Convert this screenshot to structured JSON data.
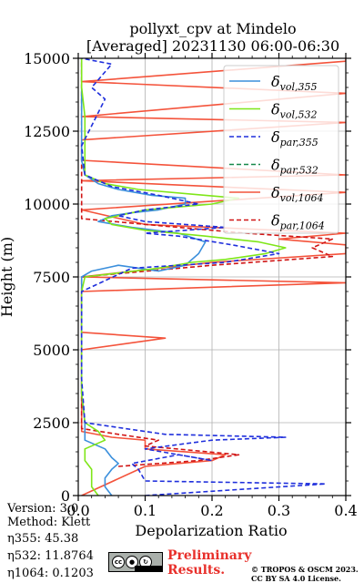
{
  "chart_data": {
    "type": "line",
    "title_line1": "pollyxt_cpv at Mindelo",
    "title_line2": "[Averaged] 20231130 06:00-06:30",
    "xlabel": "Depolarization Ratio",
    "ylabel": "Height (m)",
    "xlim": [
      0.0,
      0.4
    ],
    "ylim": [
      0,
      15000
    ],
    "x_ticks": [
      "0.0",
      "0.1",
      "0.2",
      "0.3",
      "0.4"
    ],
    "y_ticks": [
      "0",
      "2500",
      "5000",
      "7500",
      "10000",
      "12500",
      "15000"
    ],
    "grid": true,
    "legend_position": "top-right",
    "series": [
      {
        "name": "δvol,355",
        "legend_symbol": "δ",
        "legend_sub": "vol,355",
        "color": "#3b8fdc",
        "dash": "solid",
        "points": [
          [
            0.05,
            0
          ],
          [
            0.04,
            300
          ],
          [
            0.04,
            600
          ],
          [
            0.05,
            900
          ],
          [
            0.06,
            1100
          ],
          [
            0.05,
            1300
          ],
          [
            0.04,
            1600
          ],
          [
            0.01,
            1900
          ],
          [
            0.01,
            2500
          ],
          [
            0.005,
            3500
          ],
          [
            0.005,
            5000
          ],
          [
            0.005,
            6500
          ],
          [
            0.005,
            7300
          ],
          [
            0.005,
            7500
          ],
          [
            0.02,
            7700
          ],
          [
            0.06,
            7900
          ],
          [
            0.12,
            7700
          ],
          [
            0.16,
            7900
          ],
          [
            0.18,
            8300
          ],
          [
            0.19,
            8700
          ],
          [
            0.15,
            9000
          ],
          [
            0.08,
            9200
          ],
          [
            0.03,
            9400
          ],
          [
            0.05,
            9600
          ],
          [
            0.08,
            9700
          ],
          [
            0.12,
            9800
          ],
          [
            0.16,
            10000
          ],
          [
            0.16,
            10200
          ],
          [
            0.11,
            10300
          ],
          [
            0.06,
            10500
          ],
          [
            0.03,
            10700
          ],
          [
            0.01,
            11000
          ],
          [
            0.005,
            11500
          ],
          [
            0.005,
            12500
          ],
          [
            0.005,
            13500
          ],
          [
            0.005,
            14500
          ],
          [
            0.005,
            15000
          ]
        ]
      },
      {
        "name": "δvol,532",
        "legend_symbol": "δ",
        "legend_sub": "vol,532",
        "color": "#7fe619",
        "dash": "solid",
        "points": [
          [
            0.03,
            0
          ],
          [
            0.02,
            300
          ],
          [
            0.02,
            600
          ],
          [
            0.02,
            900
          ],
          [
            0.01,
            1200
          ],
          [
            0.01,
            1600
          ],
          [
            0.04,
            1900
          ],
          [
            0.03,
            2200
          ],
          [
            0.01,
            2500
          ],
          [
            0.005,
            3500
          ],
          [
            0.005,
            5000
          ],
          [
            0.005,
            7000
          ],
          [
            0.01,
            7500
          ],
          [
            0.12,
            7800
          ],
          [
            0.17,
            8000
          ],
          [
            0.22,
            8100
          ],
          [
            0.28,
            8300
          ],
          [
            0.31,
            8500
          ],
          [
            0.27,
            8700
          ],
          [
            0.19,
            8900
          ],
          [
            0.1,
            9100
          ],
          [
            0.05,
            9300
          ],
          [
            0.04,
            9500
          ],
          [
            0.1,
            9800
          ],
          [
            0.2,
            10000
          ],
          [
            0.24,
            10200
          ],
          [
            0.19,
            10300
          ],
          [
            0.09,
            10500
          ],
          [
            0.04,
            10700
          ],
          [
            0.01,
            11000
          ],
          [
            0.01,
            12000
          ],
          [
            0.01,
            13000
          ],
          [
            0.005,
            14000
          ],
          [
            0.005,
            15000
          ]
        ]
      },
      {
        "name": "δpar,355",
        "legend_symbol": "δ",
        "legend_sub": "par,355",
        "color": "#1f2fdc",
        "dash": "dashed",
        "points": [
          [
            0.1,
            0
          ],
          [
            0.37,
            400
          ],
          [
            0.1,
            500
          ],
          [
            0.09,
            900
          ],
          [
            0.08,
            1100
          ],
          [
            0.15,
            1400
          ],
          [
            0.2,
            1200
          ],
          [
            0.1,
            1600
          ],
          [
            0.2,
            1900
          ],
          [
            0.31,
            2000
          ],
          [
            0.13,
            2100
          ],
          [
            0.07,
            2300
          ],
          [
            0.01,
            2500
          ],
          [
            0.005,
            4000
          ],
          [
            0.005,
            7000
          ],
          [
            0.08,
            7800
          ],
          [
            0.22,
            8000
          ],
          [
            0.3,
            8300
          ],
          [
            0.23,
            8600
          ],
          [
            0.15,
            8900
          ],
          [
            0.1,
            9000
          ],
          [
            0.22,
            9200
          ],
          [
            0.1,
            9400
          ],
          [
            0.06,
            9600
          ],
          [
            0.1,
            9800
          ],
          [
            0.18,
            10000
          ],
          [
            0.12,
            10300
          ],
          [
            0.05,
            10600
          ],
          [
            0.01,
            11000
          ],
          [
            0.005,
            12000
          ],
          [
            0.04,
            13600
          ],
          [
            0.02,
            14000
          ],
          [
            0.05,
            14800
          ],
          [
            0.005,
            15000
          ]
        ]
      },
      {
        "name": "δpar,532",
        "legend_symbol": "δ",
        "legend_sub": "par,532",
        "color": "#16884a",
        "dash": "dashed",
        "points": []
      },
      {
        "name": "δvol,1064",
        "legend_symbol": "δ",
        "legend_sub": "vol,1064",
        "color": "#f4533b",
        "dash": "solid",
        "points": [
          [
            0.005,
            0
          ],
          [
            0.1,
            1000
          ],
          [
            0.2,
            1200
          ],
          [
            0.22,
            1400
          ],
          [
            0.1,
            1600
          ],
          [
            0.1,
            1900
          ],
          [
            0.05,
            2000
          ],
          [
            0.005,
            2200
          ],
          [
            0.005,
            2600
          ],
          [
            0.005,
            3500
          ],
          [
            0.005,
            5000
          ],
          [
            0.13,
            5400
          ],
          [
            0.005,
            5600
          ],
          [
            0.005,
            6500
          ],
          [
            0.005,
            7000
          ],
          [
            0.4,
            7300
          ],
          [
            0.005,
            7500
          ],
          [
            0.2,
            8000
          ],
          [
            0.4,
            8300
          ],
          [
            0.4,
            8600
          ],
          [
            0.3,
            8800
          ],
          [
            0.4,
            9000
          ],
          [
            0.1,
            9300
          ],
          [
            0.005,
            9800
          ],
          [
            0.4,
            10400
          ],
          [
            0.005,
            10800
          ],
          [
            0.4,
            11000
          ],
          [
            0.005,
            11500
          ],
          [
            0.005,
            12200
          ],
          [
            0.4,
            12800
          ],
          [
            0.005,
            13000
          ],
          [
            0.4,
            13800
          ],
          [
            0.005,
            14200
          ],
          [
            0.4,
            14900
          ],
          [
            0.4,
            15000
          ]
        ]
      },
      {
        "name": "δpar,1064",
        "legend_symbol": "δ",
        "legend_sub": "par,1064",
        "color": "#d01414",
        "dash": "dashed",
        "points": [
          [
            0.06,
            1000
          ],
          [
            0.18,
            1200
          ],
          [
            0.24,
            1400
          ],
          [
            0.1,
            1700
          ],
          [
            0.12,
            1900
          ],
          [
            0.06,
            2100
          ],
          [
            0.005,
            2300
          ],
          [
            0.005,
            7500
          ],
          [
            0.2,
            7900
          ],
          [
            0.38,
            8200
          ],
          [
            0.35,
            8500
          ],
          [
            0.38,
            8800
          ],
          [
            0.25,
            9000
          ],
          [
            0.15,
            9200
          ],
          [
            0.005,
            9500
          ],
          [
            0.005,
            15000
          ]
        ]
      }
    ]
  },
  "info": {
    "version": "Version: 3.0",
    "method": "Method: Klett",
    "eta355": "η355:  45.38",
    "eta532": "η532: 11.8764",
    "eta1064": "η1064: 0.1203"
  },
  "footer": {
    "preliminary_line1": "Preliminary",
    "preliminary_line2": "Results.",
    "credit_line1": "© TROPOS & OSCM 2023.",
    "credit_line2": "CC BY SA 4.0 License.",
    "cc_badge_text": "cc"
  }
}
